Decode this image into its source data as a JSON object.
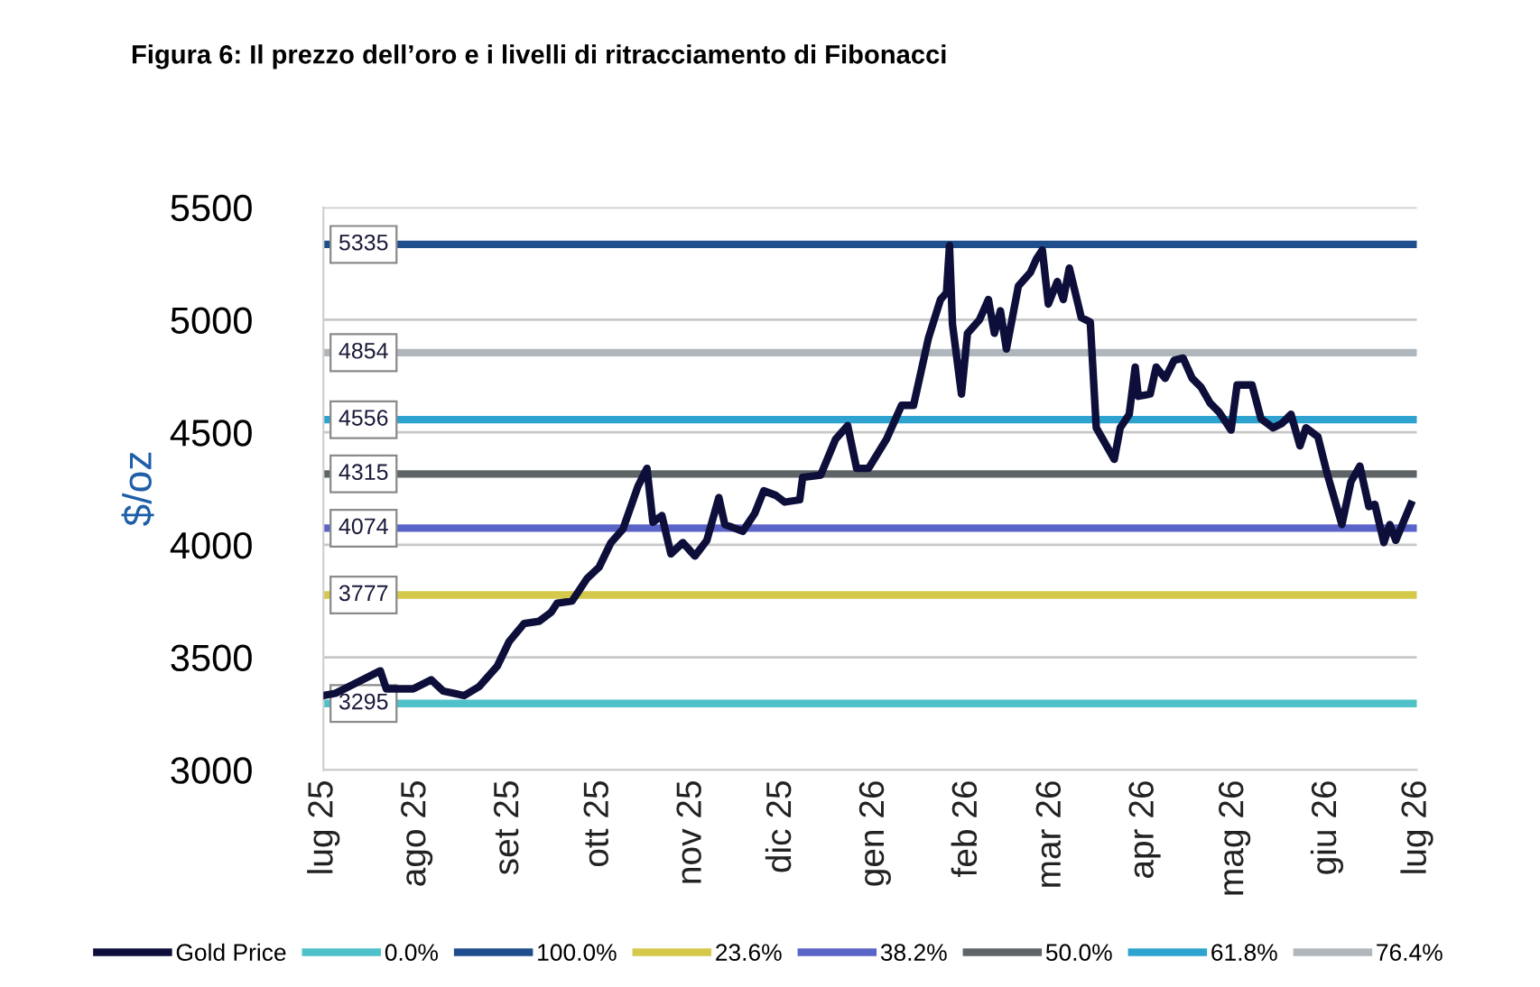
{
  "chart_data": {
    "type": "line",
    "title": "Figura 6: Il prezzo dell’oro e i livelli di ritracciamento di Fibonacci",
    "ylabel": "$/oz",
    "ylim": [
      3000,
      5500
    ],
    "yticks": [
      3000,
      3500,
      4000,
      4500,
      5000,
      5500
    ],
    "xlim": [
      "2025-07-01",
      "2026-07-01"
    ],
    "xticks": [
      {
        "value": "2025-07-01",
        "label": "lug 25"
      },
      {
        "value": "2025-08-01",
        "label": "ago 25"
      },
      {
        "value": "2025-09-01",
        "label": "set 25"
      },
      {
        "value": "2025-10-01",
        "label": "ott 25"
      },
      {
        "value": "2025-11-01",
        "label": "nov 25"
      },
      {
        "value": "2025-12-01",
        "label": "dic 25"
      },
      {
        "value": "2026-01-01",
        "label": "gen 26"
      },
      {
        "value": "2026-02-01",
        "label": "feb 26"
      },
      {
        "value": "2026-03-01",
        "label": "mar 26"
      },
      {
        "value": "2026-04-01",
        "label": "apr 26"
      },
      {
        "value": "2026-05-01",
        "label": "mag 26"
      },
      {
        "value": "2026-06-01",
        "label": "giu 26"
      },
      {
        "value": "2026-07-01",
        "label": "lug 26"
      }
    ],
    "grid": "y",
    "legend": "bottom",
    "series": [
      {
        "name": "Gold Price",
        "color": "#0d0f3a",
        "x": [
          "2025-07-01",
          "2025-07-05",
          "2025-07-20",
          "2025-07-22",
          "2025-07-31",
          "2025-08-06",
          "2025-08-10",
          "2025-08-17",
          "2025-08-22",
          "2025-08-28",
          "2025-09-01",
          "2025-09-06",
          "2025-09-11",
          "2025-09-15",
          "2025-09-17",
          "2025-09-22",
          "2025-09-27",
          "2025-10-01",
          "2025-10-05",
          "2025-10-09",
          "2025-10-14",
          "2025-10-17",
          "2025-10-19",
          "2025-10-22",
          "2025-10-25",
          "2025-10-29",
          "2025-11-02",
          "2025-11-06",
          "2025-11-10",
          "2025-11-12",
          "2025-11-18",
          "2025-11-22",
          "2025-11-25",
          "2025-11-29",
          "2025-12-02",
          "2025-12-07",
          "2025-12-08",
          "2025-12-14",
          "2025-12-19",
          "2025-12-23",
          "2025-12-26",
          "2025-12-30",
          "2026-01-05",
          "2026-01-10",
          "2026-01-14",
          "2026-01-19",
          "2026-01-23",
          "2026-01-25",
          "2026-01-26",
          "2026-01-27",
          "2026-01-30",
          "2026-02-01",
          "2026-02-05",
          "2026-02-08",
          "2026-02-10",
          "2026-02-12",
          "2026-02-14",
          "2026-02-18",
          "2026-02-22",
          "2026-02-24",
          "2026-02-26",
          "2026-02-28",
          "2026-03-03",
          "2026-03-05",
          "2026-03-07",
          "2026-03-11",
          "2026-03-14",
          "2026-03-16",
          "2026-03-22",
          "2026-03-24",
          "2026-03-27",
          "2026-03-29",
          "2026-03-30",
          "2026-04-03",
          "2026-04-05",
          "2026-04-08",
          "2026-04-11",
          "2026-04-14",
          "2026-04-17",
          "2026-04-20",
          "2026-04-23",
          "2026-04-26",
          "2026-04-30",
          "2026-05-02",
          "2026-05-07",
          "2026-05-10",
          "2026-05-14",
          "2026-05-17",
          "2026-05-20",
          "2026-05-23",
          "2026-05-25",
          "2026-05-29",
          "2026-06-01",
          "2026-06-06",
          "2026-06-09",
          "2026-06-12",
          "2026-06-15",
          "2026-06-17",
          "2026-06-20",
          "2026-06-22",
          "2026-06-24",
          "2026-06-29"
        ],
        "values": [
          3330,
          3340,
          3440,
          3360,
          3360,
          3400,
          3350,
          3330,
          3370,
          3460,
          3570,
          3650,
          3660,
          3700,
          3740,
          3750,
          3850,
          3900,
          4010,
          4070,
          4260,
          4340,
          4100,
          4130,
          3960,
          4010,
          3950,
          4020,
          4210,
          4090,
          4060,
          4140,
          4240,
          4220,
          4190,
          4200,
          4300,
          4310,
          4470,
          4530,
          4340,
          4340,
          4470,
          4620,
          4620,
          4920,
          5090,
          5120,
          5330,
          4980,
          4670,
          4940,
          5000,
          5090,
          4940,
          5040,
          4870,
          5150,
          5210,
          5270,
          5310,
          5070,
          5170,
          5090,
          5230,
          5010,
          4990,
          4520,
          4380,
          4520,
          4580,
          4790,
          4660,
          4670,
          4790,
          4740,
          4820,
          4830,
          4740,
          4700,
          4630,
          4590,
          4510,
          4710,
          4710,
          4560,
          4520,
          4540,
          4580,
          4440,
          4520,
          4480,
          4320,
          4090,
          4280,
          4350,
          4170,
          4180,
          4010,
          4090,
          4020,
          4180
        ]
      },
      {
        "name": "0.0%",
        "color": "#4fc1c9",
        "x": [
          "2025-07-01",
          "2026-07-01"
        ],
        "values": [
          3295,
          3295
        ],
        "value_labels": [
          "3295",
          null
        ]
      },
      {
        "name": "100.0%",
        "color": "#1f4e8c",
        "x": [
          "2025-07-01",
          "2026-07-01"
        ],
        "values": [
          5335,
          5335
        ],
        "value_labels": [
          "5335",
          null
        ]
      },
      {
        "name": "23.6%",
        "color": "#d4c94a",
        "x": [
          "2025-07-01",
          "2026-07-01"
        ],
        "values": [
          3777,
          3777
        ],
        "value_labels": [
          "3777",
          null
        ]
      },
      {
        "name": "38.2%",
        "color": "#5a63c8",
        "x": [
          "2025-07-01",
          "2026-07-01"
        ],
        "values": [
          4074,
          4074
        ],
        "value_labels": [
          "4074",
          null
        ]
      },
      {
        "name": "50.0%",
        "color": "#5f6467",
        "x": [
          "2025-07-01",
          "2026-07-01"
        ],
        "values": [
          4315,
          4315
        ],
        "value_labels": [
          "4315",
          null
        ]
      },
      {
        "name": "61.8%",
        "color": "#2ea3cf",
        "x": [
          "2025-07-01",
          "2026-07-01"
        ],
        "values": [
          4556,
          4556
        ],
        "value_labels": [
          "4556",
          null
        ]
      },
      {
        "name": "76.4%",
        "color": "#b0b7bc",
        "x": [
          "2025-07-01",
          "2026-07-01"
        ],
        "values": [
          4854,
          4854
        ],
        "value_labels": [
          "4854",
          null
        ]
      }
    ]
  }
}
